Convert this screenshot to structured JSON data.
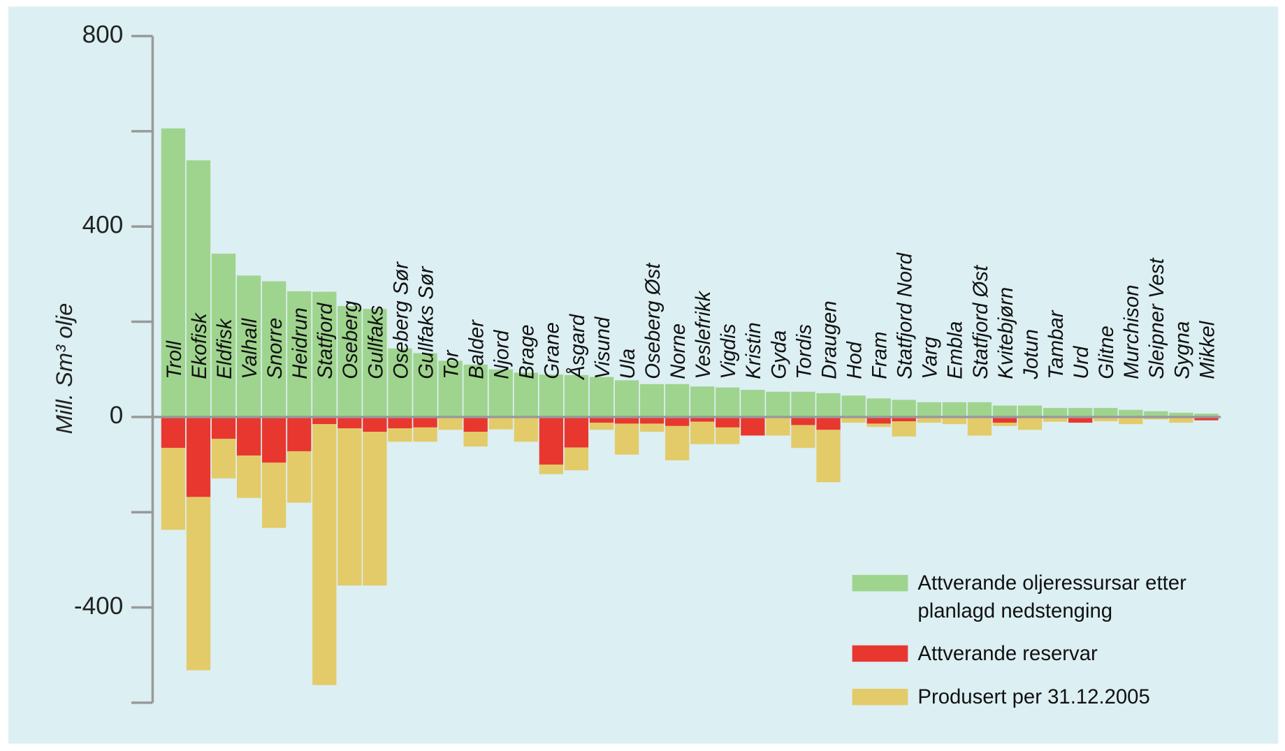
{
  "chart_data": {
    "type": "bar",
    "stacked": true,
    "y_label": "Mill. Sm³ olje",
    "categories": [
      "Troll",
      "Ekofisk",
      "Eldfisk",
      "Valhall",
      "Snorre",
      "Heidrun",
      "Statfjord",
      "Oseberg",
      "Gullfaks",
      "Oseberg Sør",
      "Gullfaks Sør",
      "Tor",
      "Balder",
      "Njord",
      "Brage",
      "Grane",
      "Åsgard",
      "Visund",
      "Ula",
      "Oseberg Øst",
      "Norne",
      "Veslefrikk",
      "Vigdis",
      "Kristin",
      "Gyda",
      "Tordis",
      "Draugen",
      "Hod",
      "Fram",
      "Statfjord Nord",
      "Varg",
      "Embla",
      "Statfjord Øst",
      "Kvitebjørn",
      "Jotun",
      "Tambar",
      "Urd",
      "Glitne",
      "Murchison",
      "Sleipner Vest",
      "Sygna",
      "Mikkel"
    ],
    "series": [
      {
        "name": "Attverande oljeressursar etter planlagd nedstenging",
        "color": "#9fd48e",
        "values": [
          606,
          539,
          343,
          297,
          285,
          264,
          263,
          233,
          227,
          144,
          134,
          118,
          110,
          100,
          93,
          89,
          88,
          84,
          77,
          69,
          69,
          64,
          62,
          57,
          53,
          53,
          50,
          45,
          39,
          36,
          31,
          31,
          31,
          24,
          24,
          19,
          19,
          19,
          15,
          12,
          9,
          7
        ]
      },
      {
        "name": "Attverande reservar",
        "color": "#e8372f",
        "values": [
          -65,
          -168,
          -46,
          -81,
          -96,
          -72,
          -15,
          -24,
          -31,
          -24,
          -22,
          -2,
          -31,
          0,
          0,
          -100,
          -64,
          -12,
          -14,
          -14,
          -19,
          -10,
          -22,
          -39,
          0,
          -17,
          -27,
          0,
          -14,
          -9,
          0,
          0,
          0,
          -12,
          0,
          0,
          -12,
          0,
          0,
          0,
          0,
          -7
        ]
      },
      {
        "name": "Produsert per 31.12.2005",
        "color": "#e3cb69",
        "values": [
          -172,
          -364,
          -83,
          -89,
          -137,
          -108,
          -548,
          -330,
          -323,
          -28,
          -30,
          -25,
          -31,
          -26,
          -52,
          -20,
          -48,
          -15,
          -65,
          -17,
          -72,
          -47,
          -35,
          0,
          -39,
          -48,
          -110,
          -12,
          -7,
          -32,
          -12,
          -15,
          -39,
          -7,
          -27,
          -10,
          0,
          -9,
          -15,
          -5,
          -12,
          0
        ]
      }
    ],
    "ylim": [
      -600,
      800
    ],
    "yticks": [
      -400,
      0,
      400,
      800
    ],
    "minor_yticks": [
      -600,
      -200,
      200,
      600
    ],
    "legend": "lower right"
  }
}
